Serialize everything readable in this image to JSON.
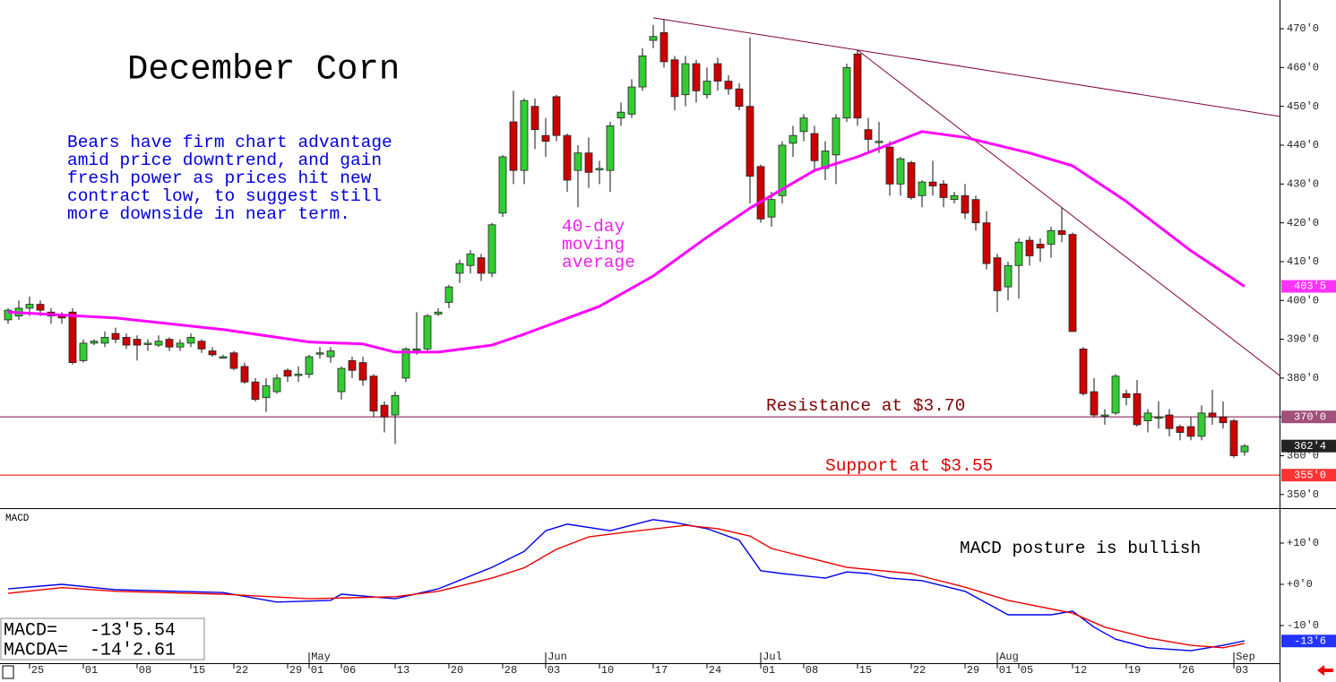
{
  "chart_data": [
    {
      "type": "candlestick",
      "title": "December Corn",
      "annotation": [
        "Bears have firm chart advantage",
        "amid price downtrend, and gain",
        "fresh power as prices hit new",
        "contract low, to suggest still",
        "more downside in near term."
      ],
      "ma_label": [
        "40-day",
        "moving",
        "average"
      ],
      "xlim": [
        -0.75,
        118.25
      ],
      "ylim": [
        346.5,
        477.4
      ],
      "yticks": [
        {
          "value": 350,
          "label": "350'0"
        },
        {
          "value": 360,
          "label": "360'0"
        },
        {
          "value": 370,
          "label": "370'0"
        },
        {
          "value": 380,
          "label": "380'0"
        },
        {
          "value": 390,
          "label": "390'0"
        },
        {
          "value": 400,
          "label": "400'0"
        },
        {
          "value": 410,
          "label": "410'0"
        },
        {
          "value": 420,
          "label": "420'0"
        },
        {
          "value": 430,
          "label": "430'0"
        },
        {
          "value": 440,
          "label": "440'0"
        },
        {
          "value": 450,
          "label": "450'0"
        },
        {
          "value": 460,
          "label": "460'0"
        },
        {
          "value": 470,
          "label": "470'0"
        }
      ],
      "up_color": "#33cc33",
      "down_color": "#cc0000",
      "open": [
        395,
        396,
        398,
        399,
        397,
        396,
        397,
        384.5,
        389,
        389,
        391.5,
        390.5,
        390,
        389,
        388.5,
        390,
        388,
        389,
        389.5,
        387,
        385.5,
        386.5,
        383,
        379,
        375,
        376.5,
        382,
        381,
        381,
        386.5,
        385.5,
        376.5,
        384.5,
        384,
        380.5,
        373,
        370.5,
        380,
        387.5,
        387.5,
        396.5,
        399.5,
        407,
        409,
        411,
        407,
        422.5,
        446,
        433.5,
        450,
        442.5,
        452.5,
        442.5,
        433.5,
        438,
        434,
        433.5,
        447,
        448,
        455,
        467,
        469,
        462,
        453,
        461,
        453,
        461,
        456.5,
        454.5,
        450,
        434.5,
        421.5,
        427,
        440.5,
        443.5,
        443,
        434,
        437.5,
        447,
        463.5,
        444,
        441,
        439.5,
        430,
        435.5,
        427,
        430.5,
        430,
        426,
        427,
        426,
        420,
        411,
        403.5,
        409,
        415.5,
        414.5,
        414.5,
        418,
        417,
        387.5,
        376.5,
        370.5,
        371,
        376,
        376,
        369,
        370,
        370.5,
        367.5,
        367.5,
        365,
        371,
        370,
        369,
        361
      ],
      "high": [
        398,
        400,
        401,
        400,
        398,
        397,
        398,
        390,
        390,
        392,
        393,
        391.5,
        391,
        390,
        391,
        390.5,
        390,
        391.5,
        390,
        388,
        386,
        387,
        384,
        380,
        380,
        381,
        382.5,
        383,
        386,
        388,
        388,
        383,
        385.5,
        385.5,
        381,
        374,
        376.5,
        388,
        397,
        396.5,
        398,
        404,
        410.5,
        413,
        412,
        420,
        437.5,
        454,
        452,
        452,
        447,
        453,
        443,
        440,
        442,
        436,
        446,
        451,
        457,
        465,
        471,
        472.5,
        463,
        463,
        462,
        460,
        462.5,
        458,
        456,
        467.7,
        435,
        428,
        441,
        445,
        448,
        445,
        441,
        448,
        461,
        464.5,
        447,
        446,
        441,
        437,
        436,
        431,
        436,
        431,
        428,
        430,
        427,
        423,
        412,
        410,
        416,
        416.5,
        416,
        419,
        424,
        417.5,
        388,
        380,
        372,
        381,
        377,
        379.5,
        372,
        374,
        372,
        368,
        370,
        373,
        377,
        374,
        369.5,
        363
      ],
      "low": [
        394,
        395,
        396,
        396,
        394,
        394,
        383.5,
        384,
        388.5,
        388,
        389,
        387.5,
        384.5,
        387,
        388,
        387,
        387,
        388,
        386.5,
        385.5,
        385,
        382,
        378.5,
        374,
        371.3,
        376,
        379,
        379,
        380,
        385,
        384,
        374.5,
        380,
        378,
        370,
        366,
        363,
        379,
        386,
        387,
        396,
        398,
        404.5,
        407,
        405,
        406,
        421.5,
        430,
        430,
        439,
        437,
        441,
        428,
        424,
        429,
        430,
        428,
        445,
        447,
        454,
        465,
        460,
        449,
        450,
        451,
        452,
        454,
        453,
        449,
        425,
        420,
        419,
        425,
        437,
        441,
        433,
        431,
        430,
        446,
        445,
        438,
        438,
        427,
        427,
        426,
        424,
        427,
        424,
        425,
        421,
        418,
        408,
        397,
        400,
        400.5,
        409,
        410,
        411,
        415,
        392,
        375.5,
        370,
        368,
        370.5,
        373,
        367.5,
        366,
        367,
        365,
        364,
        364,
        364,
        368,
        367,
        359.5,
        360
      ],
      "close": [
        397.5,
        398,
        399,
        397.5,
        396,
        395.5,
        384,
        389,
        389.5,
        390.5,
        390,
        388.5,
        388.5,
        389,
        389.5,
        388,
        389,
        390.5,
        387.5,
        386,
        385.5,
        382.5,
        379,
        374.5,
        378,
        380,
        380.5,
        381,
        385.5,
        386.5,
        387,
        382.5,
        382,
        379.5,
        371.5,
        370,
        375.5,
        387.5,
        387.5,
        396,
        397,
        403.5,
        409.5,
        412,
        407,
        419.5,
        437,
        433.5,
        451.5,
        444,
        441,
        442.5,
        431,
        438,
        433,
        434,
        445,
        448.5,
        455,
        463,
        468,
        461.5,
        452.5,
        461,
        454,
        456.5,
        456.5,
        454.5,
        450,
        432,
        421,
        426,
        440,
        442.5,
        447,
        436,
        438.5,
        447,
        460,
        447,
        441.5,
        441,
        430,
        436.5,
        426.5,
        430.5,
        429.5,
        426.5,
        427,
        422.5,
        420,
        409.5,
        402.5,
        409,
        415,
        411.5,
        413.5,
        418,
        417,
        392,
        376,
        370.5,
        370.5,
        380.5,
        375,
        368,
        371,
        370,
        367,
        366,
        365,
        371,
        370,
        368.5,
        360,
        362.5
      ],
      "series": [
        {
          "color": "#ff00ff",
          "x": [
            0,
            10,
            20,
            28,
            33,
            36,
            40,
            45,
            48,
            55,
            60,
            65,
            69,
            75,
            79,
            85,
            89,
            95,
            99,
            104,
            110,
            115
          ],
          "values": [
            397,
            395.5,
            392.5,
            389.3,
            388.8,
            386.7,
            386.7,
            388.5,
            391.3,
            398.5,
            406.3,
            416.3,
            423.8,
            433.5,
            437,
            443.5,
            442,
            438,
            434.7,
            425.5,
            412.8,
            403.625
          ]
        }
      ],
      "trendlines": [
        {
          "color": "#800040",
          "x": [
            60,
            118.25
          ],
          "values": [
            472.8,
            447.4
          ]
        },
        {
          "color": "#800040",
          "x": [
            79,
            118.25
          ],
          "values": [
            464.5,
            380.7
          ]
        }
      ],
      "hlines": [
        {
          "value": 370,
          "color": "#a0507a",
          "label": "Resistance at $3.70"
        },
        {
          "value": 355,
          "color": "#ff4444",
          "label": "Support at $3.55"
        }
      ],
      "price_labels": [
        {
          "value": 403.625,
          "label": "403'5",
          "color": "#ff33ff"
        },
        {
          "value": 370,
          "label": "370'0",
          "color": "#a0507a"
        },
        {
          "value": 362.5,
          "label": "362'4",
          "color": "#222222"
        },
        {
          "value": 355,
          "label": "355'0",
          "color": "#ff3333"
        }
      ]
    },
    {
      "type": "line",
      "title": "MACD",
      "annotation": "MACD posture is bullish",
      "readout": [
        "MACD=   -13'5.54",
        "MACDA=  -14'2.61"
      ],
      "xlim": [
        -0.75,
        118.25
      ],
      "ylim": [
        -19.13,
        18.26
      ],
      "yticks": [
        {
          "value": -10,
          "label": "-10'0"
        },
        {
          "value": 0,
          "label": "+0'0"
        },
        {
          "value": 10,
          "label": "+10'0"
        }
      ],
      "series": [
        {
          "color": "#0000ee",
          "x": [
            0,
            5,
            10,
            20,
            25,
            30,
            31,
            36,
            40,
            45,
            48,
            50,
            52,
            56,
            60,
            62,
            65,
            68,
            70,
            72,
            76,
            78,
            80,
            82,
            85,
            89,
            93,
            97,
            99,
            101,
            103,
            106,
            110,
            113,
            115
          ],
          "values": [
            -1.1,
            0,
            -1.3,
            -2,
            -4.3,
            -3.9,
            -2.4,
            -3.5,
            -1.1,
            4.1,
            8,
            13,
            14.6,
            13,
            15.7,
            15,
            13.5,
            10.7,
            3.3,
            2.6,
            1.5,
            3,
            2.6,
            1.5,
            0.9,
            -1.7,
            -7.4,
            -7.4,
            -6.5,
            -10.4,
            -13.3,
            -15.4,
            -16.1,
            -14.8,
            -13.69
          ]
        },
        {
          "color": "#ee0000",
          "x": [
            0,
            5,
            10,
            20,
            28,
            36,
            40,
            45,
            48,
            51,
            54,
            58,
            63,
            66,
            69,
            71,
            78,
            84,
            89,
            93,
            99,
            102,
            106,
            110,
            113,
            115
          ],
          "values": [
            -2.2,
            -0.8,
            -1.7,
            -2.4,
            -3.5,
            -3,
            -1.7,
            1.5,
            4,
            8.5,
            11.5,
            12.8,
            14.3,
            13.5,
            11.7,
            8.7,
            4.1,
            2.6,
            -0.7,
            -3.9,
            -7,
            -10.4,
            -13,
            -14.8,
            -15.4,
            -14.33
          ]
        }
      ],
      "price_labels": [
        {
          "value": -13.75,
          "label": "-13'6",
          "color": "#2233ff"
        }
      ],
      "xticks": [
        {
          "value": 2,
          "label": "25"
        },
        {
          "value": 7,
          "label": "01"
        },
        {
          "value": 12,
          "label": "08"
        },
        {
          "value": 17,
          "label": "15"
        },
        {
          "value": 21,
          "label": "22"
        },
        {
          "value": 26,
          "label": "29"
        },
        {
          "value": 28,
          "label": "01"
        },
        {
          "value": 31,
          "label": "06"
        },
        {
          "value": 36,
          "label": "13"
        },
        {
          "value": 41,
          "label": "20"
        },
        {
          "value": 46,
          "label": "28"
        },
        {
          "value": 50,
          "label": "03"
        },
        {
          "value": 55,
          "label": "10"
        },
        {
          "value": 60,
          "label": "17"
        },
        {
          "value": 65,
          "label": "24"
        },
        {
          "value": 70,
          "label": "01"
        },
        {
          "value": 74,
          "label": "08"
        },
        {
          "value": 79,
          "label": "15"
        },
        {
          "value": 84,
          "label": "22"
        },
        {
          "value": 89,
          "label": "29"
        },
        {
          "value": 92,
          "label": "01"
        },
        {
          "value": 94,
          "label": "05"
        },
        {
          "value": 99,
          "label": "12"
        },
        {
          "value": 104,
          "label": "19"
        },
        {
          "value": 109,
          "label": "26"
        },
        {
          "value": 114,
          "label": "03"
        }
      ],
      "month_ticks": [
        {
          "value": 28,
          "label": "May"
        },
        {
          "value": 50,
          "label": "Jun"
        },
        {
          "value": 70,
          "label": "Jul"
        },
        {
          "value": 92,
          "label": "Aug"
        },
        {
          "value": 114,
          "label": "Sep"
        }
      ]
    }
  ]
}
